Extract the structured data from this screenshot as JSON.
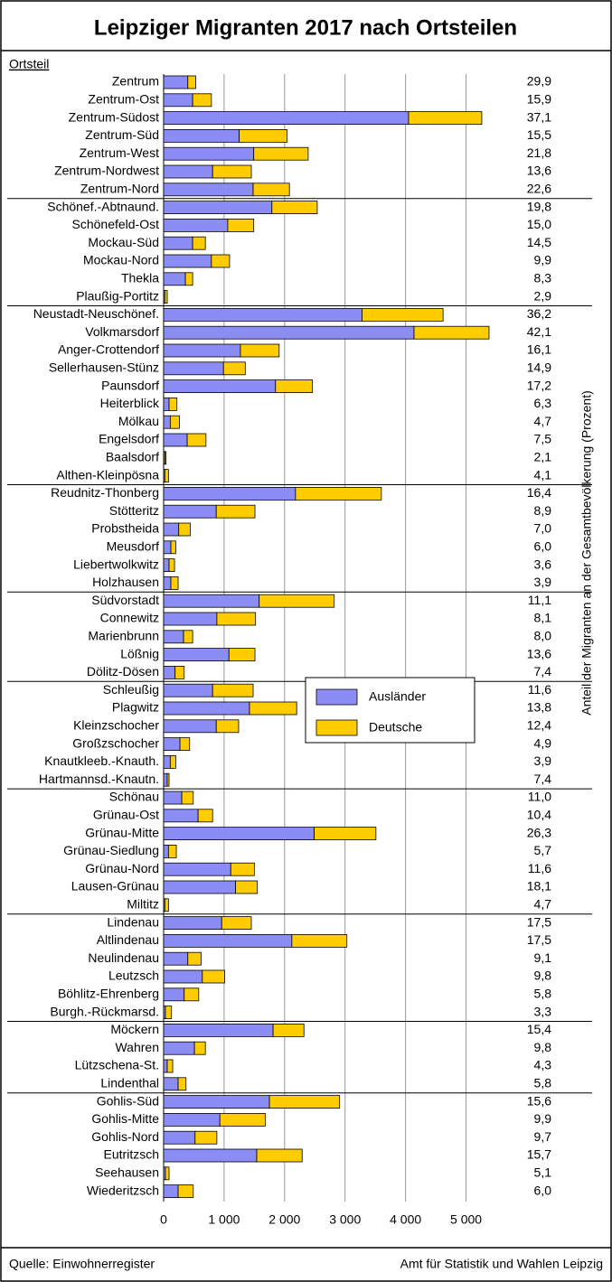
{
  "chart_data": {
    "type": "stacked_barh",
    "title": "Leipziger Migranten 2017 nach Ortsteilen",
    "category_axis_label": "Ortsteil",
    "categories": [
      "Zentrum",
      "Zentrum-Ost",
      "Zentrum-Südost",
      "Zentrum-Süd",
      "Zentrum-West",
      "Zentrum-Nordwest",
      "Zentrum-Nord",
      "Schönef.-Abtnaund.",
      "Schönefeld-Ost",
      "Mockau-Süd",
      "Mockau-Nord",
      "Thekla",
      "Plaußig-Portitz",
      "Neustadt-Neuschönef.",
      "Volkmarsdorf",
      "Anger-Crottendorf",
      "Sellerhausen-Stünz",
      "Paunsdorf",
      "Heiterblick",
      "Mölkau",
      "Engelsdorf",
      "Baalsdorf",
      "Althen-Kleinpösna",
      "Reudnitz-Thonberg",
      "Stötteritz",
      "Probstheida",
      "Meusdorf",
      "Liebertwolkwitz",
      "Holzhausen",
      "Südvorstadt",
      "Connewitz",
      "Marienbrunn",
      "Lößnig",
      "Dölitz-Dösen",
      "Schleußig",
      "Plagwitz",
      "Kleinzschocher",
      "Großzschocher",
      "Knautkleeb.-Knauth.",
      "Hartmannsd.-Knautn.",
      "Schönau",
      "Grünau-Ost",
      "Grünau-Mitte",
      "Grünau-Siedlung",
      "Grünau-Nord",
      "Lausen-Grünau",
      "Miltitz",
      "Lindenau",
      "Altlindenau",
      "Neulindenau",
      "Leutzsch",
      "Böhlitz-Ehrenberg",
      "Burgh.-Rückmarsd.",
      "Möckern",
      "Wahren",
      "Lützschena-St.",
      "Lindenthal",
      "Gohlis-Süd",
      "Gohlis-Mitte",
      "Gohlis-Nord",
      "Eutritzsch",
      "Seehausen",
      "Wiederitzsch"
    ],
    "series": [
      {
        "name": "Ausländer",
        "color": "#8c8cf5",
        "values": [
          400,
          480,
          4050,
          1250,
          1490,
          810,
          1480,
          1790,
          1060,
          480,
          790,
          360,
          20,
          3280,
          4140,
          1270,
          990,
          1850,
          90,
          110,
          390,
          20,
          20,
          2180,
          870,
          250,
          120,
          90,
          120,
          1580,
          880,
          330,
          1080,
          190,
          810,
          1420,
          870,
          270,
          110,
          60,
          300,
          570,
          2490,
          80,
          1110,
          1190,
          20,
          960,
          2120,
          400,
          640,
          340,
          30,
          1810,
          510,
          60,
          240,
          1750,
          930,
          520,
          1540,
          30,
          240
        ]
      },
      {
        "name": "Deutsche",
        "color": "#ffcc00",
        "values": [
          130,
          310,
          1210,
          790,
          900,
          640,
          600,
          750,
          430,
          210,
          300,
          120,
          40,
          1340,
          1240,
          640,
          360,
          610,
          130,
          150,
          310,
          20,
          60,
          1420,
          640,
          190,
          80,
          90,
          120,
          1240,
          640,
          150,
          430,
          150,
          670,
          780,
          370,
          160,
          90,
          30,
          190,
          240,
          1020,
          130,
          390,
          360,
          60,
          490,
          910,
          220,
          370,
          240,
          100,
          510,
          180,
          90,
          130,
          1160,
          750,
          360,
          750,
          60,
          250
        ]
      }
    ],
    "share": {
      "name": "Anteil der Migranten an der Gesamtbevölkerung (Prozent)",
      "values": [
        29.9,
        15.9,
        37.1,
        15.5,
        21.8,
        13.6,
        22.6,
        19.8,
        15.0,
        14.5,
        9.9,
        8.3,
        2.9,
        36.2,
        42.1,
        16.1,
        14.9,
        17.2,
        6.3,
        4.7,
        7.5,
        2.1,
        4.1,
        16.4,
        8.9,
        7.0,
        6.0,
        3.6,
        3.9,
        11.1,
        8.1,
        8.0,
        13.6,
        7.4,
        11.6,
        13.8,
        12.4,
        4.9,
        3.9,
        7.4,
        11.0,
        10.4,
        26.3,
        5.7,
        11.6,
        18.1,
        4.7,
        17.5,
        17.5,
        9.1,
        9.8,
        5.8,
        3.3,
        15.4,
        9.8,
        4.3,
        5.8,
        15.6,
        9.9,
        9.7,
        15.7,
        5.1,
        6.0
      ],
      "value_labels": [
        "29,9",
        "15,9",
        "37,1",
        "15,5",
        "21,8",
        "13,6",
        "22,6",
        "19,8",
        "15,0",
        "14,5",
        "9,9",
        "8,3",
        "2,9",
        "36,2",
        "42,1",
        "16,1",
        "14,9",
        "17,2",
        "6,3",
        "4,7",
        "7,5",
        "2,1",
        "4,1",
        "16,4",
        "8,9",
        "7,0",
        "6,0",
        "3,6",
        "3,9",
        "11,1",
        "8,1",
        "8,0",
        "13,6",
        "7,4",
        "11,6",
        "13,8",
        "12,4",
        "4,9",
        "3,9",
        "7,4",
        "11,0",
        "10,4",
        "26,3",
        "5,7",
        "11,6",
        "18,1",
        "4,7",
        "17,5",
        "17,5",
        "9,1",
        "9,8",
        "5,8",
        "3,3",
        "15,4",
        "9,8",
        "4,3",
        "5,8",
        "15,6",
        "9,9",
        "9,7",
        "15,7",
        "5,1",
        "6,0"
      ]
    },
    "xlim": [
      0,
      5500
    ],
    "xticks": [
      0,
      {
        "value": 1000,
        "label": "1 000"
      },
      {
        "value": 2000,
        "label": "2 000"
      },
      {
        "value": 3000,
        "label": "3 000"
      },
      {
        "value": 4000,
        "label": "4 000"
      },
      {
        "value": 5000,
        "label": "5 000"
      }
    ],
    "grid": true,
    "legend": "center",
    "source": "Quelle: Einwohnerregister",
    "publisher": "Amt für Statistik und Wahlen Leipzig"
  }
}
